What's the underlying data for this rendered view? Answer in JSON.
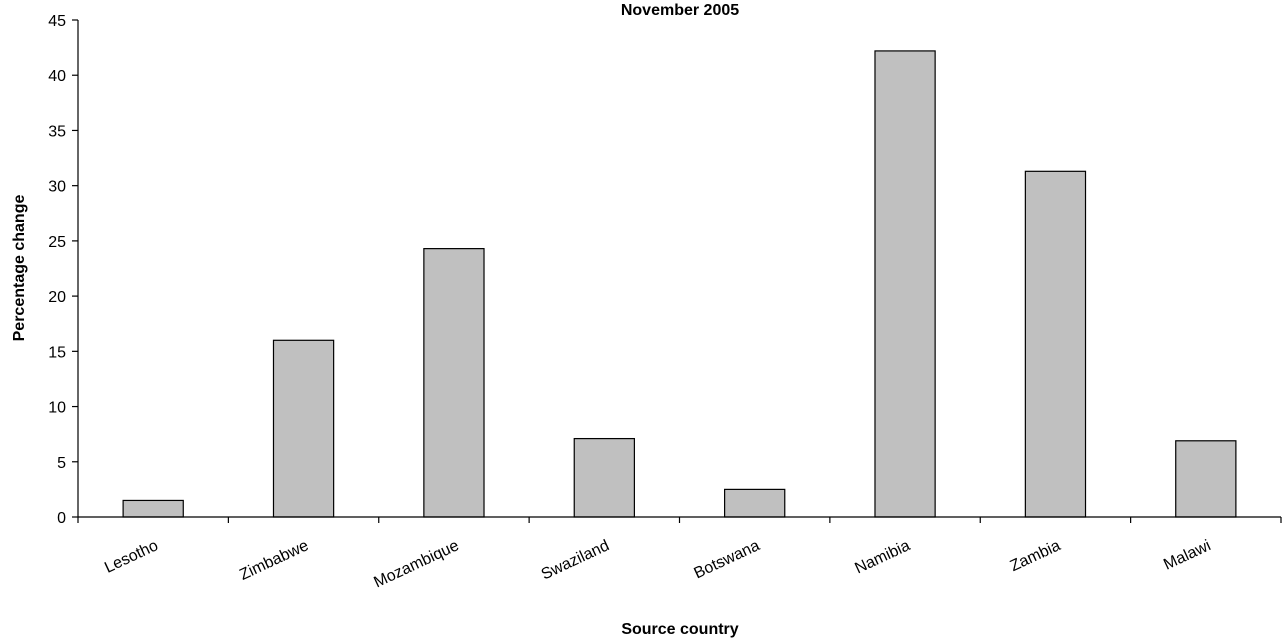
{
  "chart_data": {
    "type": "bar",
    "title": "November 2005",
    "xlabel": "Source country",
    "ylabel": "Percentage change",
    "categories": [
      "Lesotho",
      "Zimbabwe",
      "Mozambique",
      "Swaziland",
      "Botswana",
      "Namibia",
      "Zambia",
      "Malawi"
    ],
    "values": [
      1.5,
      16.0,
      24.3,
      7.1,
      2.5,
      42.2,
      31.3,
      6.9
    ],
    "ylim": [
      0,
      45
    ],
    "yticks": [
      0,
      5,
      10,
      15,
      20,
      25,
      30,
      35,
      40,
      45
    ],
    "grid": false,
    "legend": "none",
    "bar_color": "#c0c0c0",
    "bar_edge_color": "#000000"
  }
}
